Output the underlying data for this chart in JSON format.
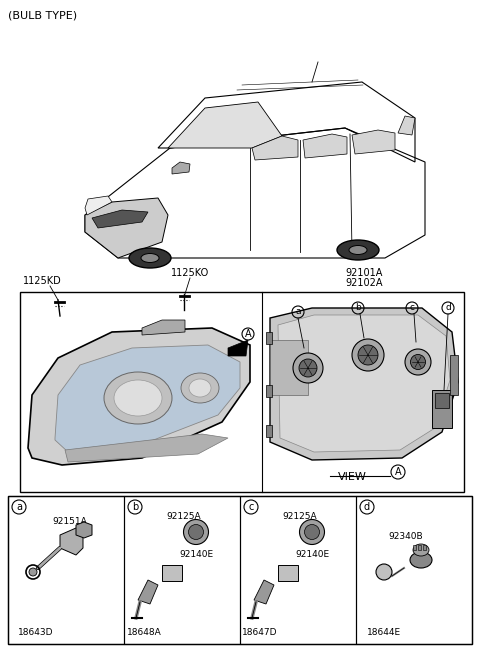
{
  "title": "(BULB TYPE)",
  "background_color": "#ffffff",
  "figsize": [
    4.8,
    6.56
  ],
  "dpi": 100,
  "text_color": "#000000",
  "part_labels": {
    "top_left": "1125KD",
    "top_center": "1125KO",
    "top_right_1": "92101A",
    "top_right_2": "92102A"
  },
  "view_label": "VIEW",
  "circle_label": "A",
  "arrow_label": "A",
  "section_labels": [
    "a",
    "b",
    "c",
    "d"
  ],
  "section_parts": {
    "a": {
      "top": "92151A",
      "bottom": "18643D"
    },
    "b": {
      "top1": "92125A",
      "top2": "92140E",
      "bottom": "18648A"
    },
    "c": {
      "top1": "92125A",
      "top2": "92140E",
      "bottom": "18647D"
    },
    "d": {
      "top": "92340B",
      "bottom": "18644E"
    }
  }
}
